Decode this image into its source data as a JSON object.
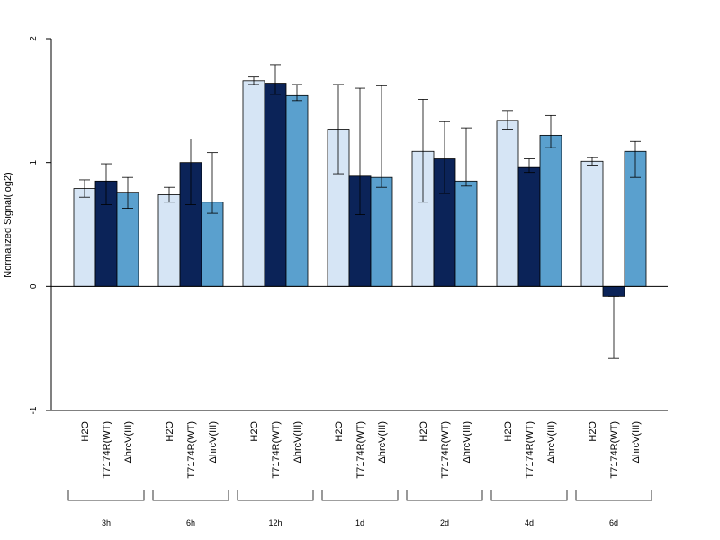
{
  "chart_data": {
    "type": "bar",
    "ylabel": "Normalized Signal(log2)",
    "ylim": [
      -1,
      2
    ],
    "yticks": [
      -1,
      0,
      1,
      2
    ],
    "series": [
      {
        "name": "H2O",
        "color": "#d6e5f5"
      },
      {
        "name": "T7174R(WT)",
        "color": "#0b2358"
      },
      {
        "name": "ΔhrcV(III)",
        "color": "#5aa0ce"
      }
    ],
    "groups": [
      {
        "label": "3h",
        "values": [
          0.79,
          0.85,
          0.76
        ],
        "err_low": [
          0.72,
          0.66,
          0.63
        ],
        "err_high": [
          0.86,
          0.99,
          0.88
        ]
      },
      {
        "label": "6h",
        "values": [
          0.74,
          1.0,
          0.68
        ],
        "err_low": [
          0.68,
          0.66,
          0.59
        ],
        "err_high": [
          0.8,
          1.19,
          1.08
        ]
      },
      {
        "label": "12h",
        "values": [
          1.66,
          1.64,
          1.54
        ],
        "err_low": [
          1.63,
          1.55,
          1.5
        ],
        "err_high": [
          1.69,
          1.79,
          1.63
        ]
      },
      {
        "label": "1d",
        "values": [
          1.27,
          0.89,
          0.88
        ],
        "err_low": [
          0.91,
          0.58,
          0.8
        ],
        "err_high": [
          1.63,
          1.6,
          1.62
        ]
      },
      {
        "label": "2d",
        "values": [
          1.09,
          1.03,
          0.85
        ],
        "err_low": [
          0.68,
          0.75,
          0.81
        ],
        "err_high": [
          1.51,
          1.33,
          1.28
        ]
      },
      {
        "label": "4d",
        "values": [
          1.34,
          0.96,
          1.22
        ],
        "err_low": [
          1.27,
          0.92,
          1.12
        ],
        "err_high": [
          1.42,
          1.03,
          1.38
        ]
      },
      {
        "label": "6d",
        "values": [
          1.01,
          -0.08,
          1.09
        ],
        "err_low": [
          0.98,
          -0.58,
          0.88
        ],
        "err_high": [
          1.04,
          -0.08,
          1.17
        ]
      }
    ]
  }
}
